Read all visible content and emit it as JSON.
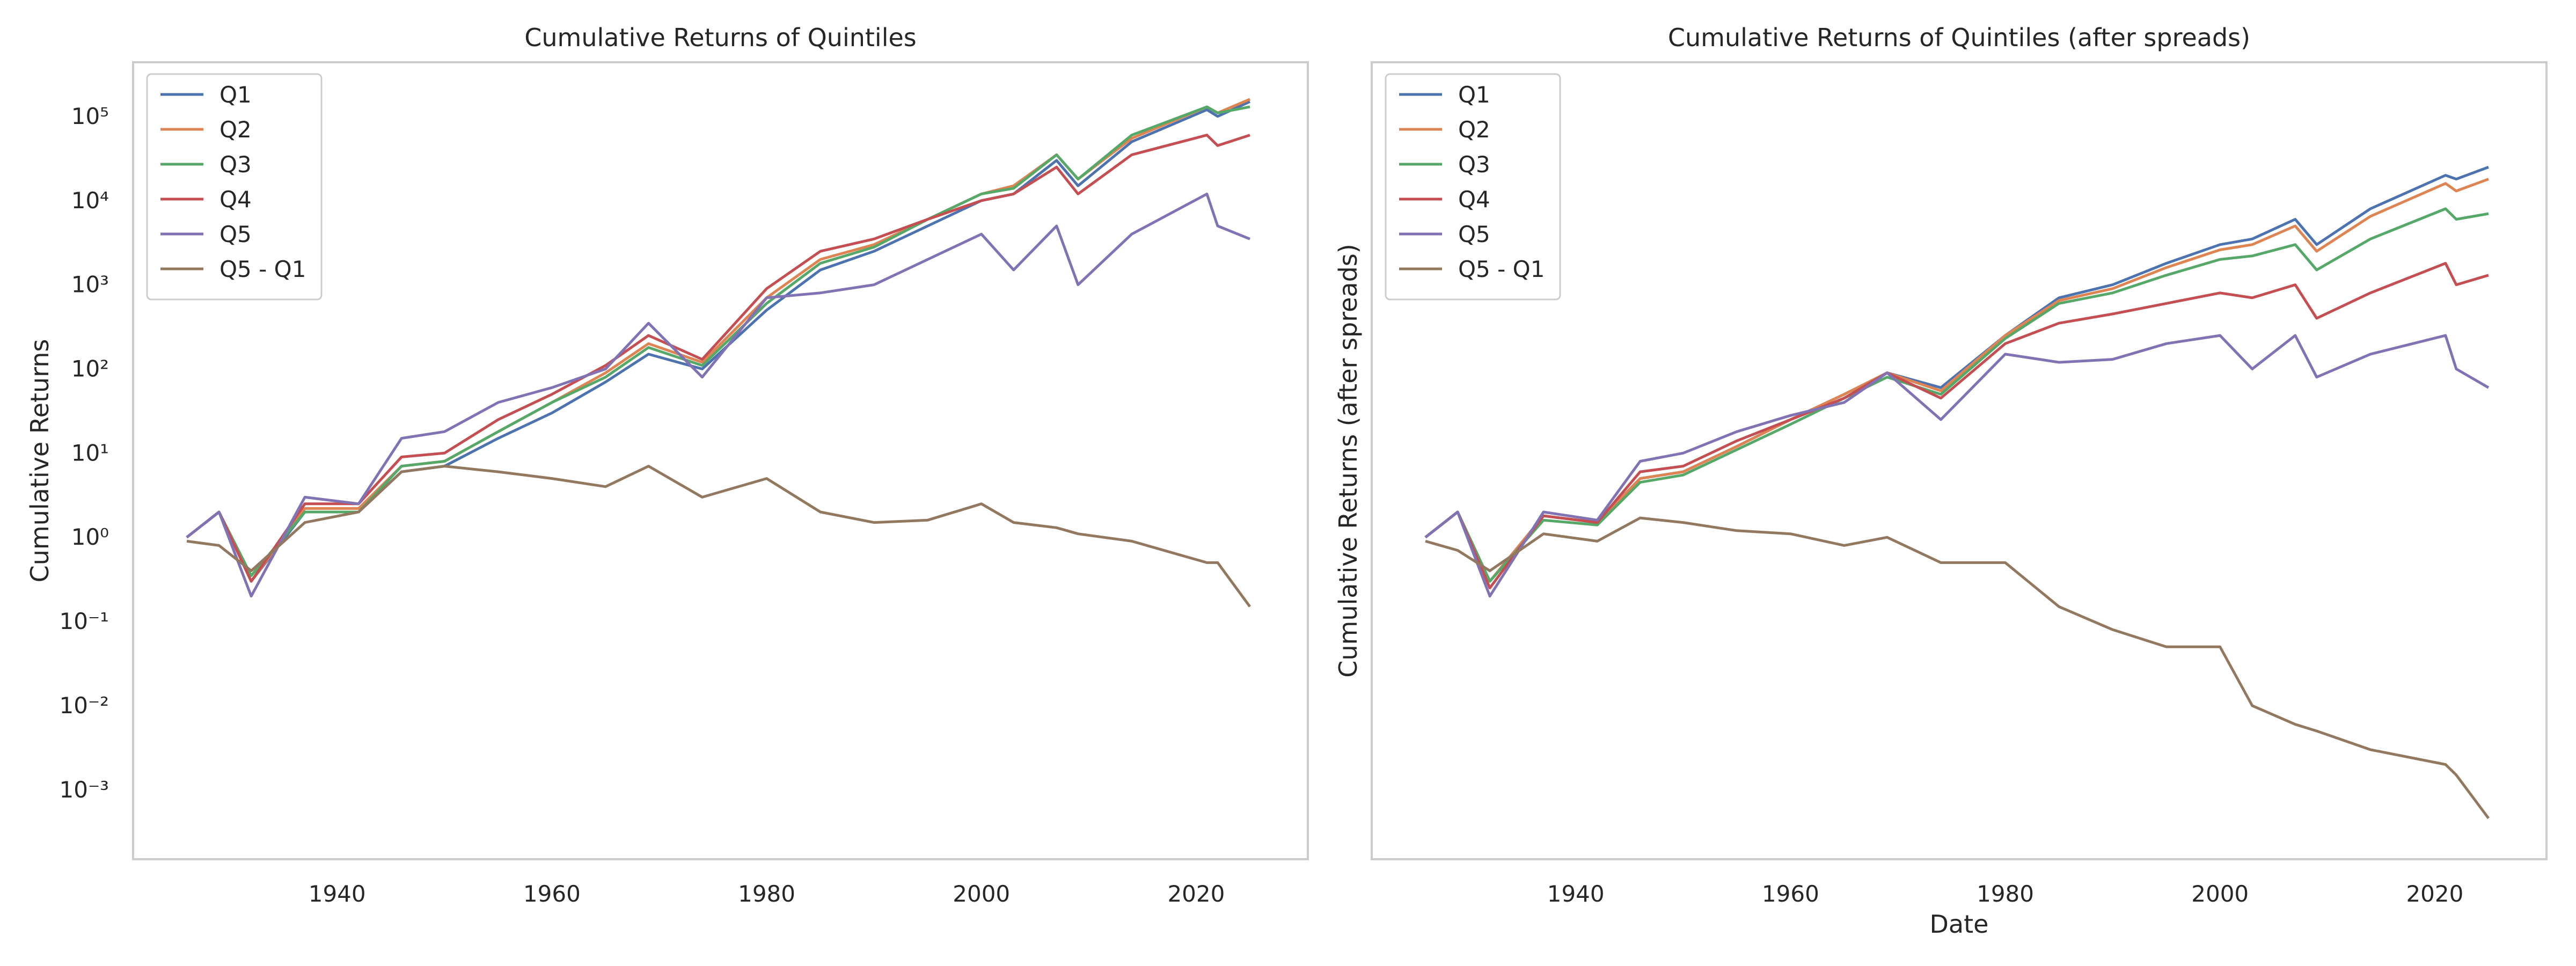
{
  "chart_data": [
    {
      "type": "line",
      "title": "Cumulative Returns of Quintiles",
      "ylabel": "Cumulative Returns",
      "x": [
        1926,
        1929,
        1932,
        1937,
        1942,
        1946,
        1950,
        1955,
        1960,
        1965,
        1969,
        1974,
        1980,
        1985,
        1990,
        1995,
        2000,
        2003,
        2007,
        2009,
        2014,
        2021,
        2022,
        2025
      ],
      "series": [
        {
          "name": "Q1",
          "color": "#4c72b0",
          "values": [
            1,
            2,
            0.3,
            2,
            2,
            6,
            7,
            15,
            30,
            70,
            150,
            100,
            500,
            1500,
            2500,
            5000,
            10000,
            12000,
            30000,
            15000,
            50000,
            120000,
            100000,
            150000
          ]
        },
        {
          "name": "Q2",
          "color": "#dd8452",
          "values": [
            1,
            2,
            0.3,
            2.2,
            2.2,
            7,
            8,
            18,
            40,
            90,
            200,
            120,
            700,
            2000,
            3000,
            6000,
            12000,
            15000,
            35000,
            18000,
            55000,
            130000,
            110000,
            160000
          ]
        },
        {
          "name": "Q3",
          "color": "#55a868",
          "values": [
            1,
            2,
            0.35,
            2,
            2,
            7,
            8,
            18,
            40,
            80,
            180,
            110,
            600,
            1800,
            2800,
            6000,
            12000,
            14000,
            35000,
            18000,
            60000,
            130000,
            110000,
            130000
          ]
        },
        {
          "name": "Q4",
          "color": "#c44e52",
          "values": [
            1,
            2,
            0.3,
            2.5,
            2.5,
            9,
            10,
            25,
            50,
            110,
            250,
            130,
            900,
            2500,
            3500,
            6000,
            10000,
            12000,
            25000,
            12000,
            35000,
            60000,
            45000,
            60000
          ]
        },
        {
          "name": "Q5",
          "color": "#8172b3",
          "values": [
            1,
            2,
            0.2,
            3,
            2.5,
            15,
            18,
            40,
            60,
            100,
            350,
            80,
            700,
            800,
            1000,
            2000,
            4000,
            1500,
            5000,
            1000,
            4000,
            12000,
            5000,
            3500
          ]
        },
        {
          "name": "Q5 - Q1",
          "color": "#937860",
          "values": [
            0.9,
            0.8,
            0.4,
            1.5,
            2,
            6,
            7,
            6,
            5,
            4,
            7,
            3,
            5,
            2,
            1.5,
            1.6,
            2.5,
            1.5,
            1.3,
            1.1,
            0.9,
            0.5,
            0.5,
            0.15
          ]
        }
      ],
      "xlim": [
        1921,
        2030.4
      ],
      "xticks": [
        1940,
        1960,
        1980,
        2000,
        2020
      ],
      "ylim": [
        0.00015,
        440000
      ],
      "log_scale": "y",
      "grid": false,
      "legend": "upper left",
      "yticks": [
        {
          "value": 0.001,
          "label": "10⁻³"
        },
        {
          "value": 0.01,
          "label": "10⁻²"
        },
        {
          "value": 0.1,
          "label": "10⁻¹"
        },
        {
          "value": 1,
          "label": "10⁰"
        },
        {
          "value": 10,
          "label": "10¹"
        },
        {
          "value": 100,
          "label": "10²"
        },
        {
          "value": 1000,
          "label": "10³"
        },
        {
          "value": 10000,
          "label": "10⁴"
        },
        {
          "value": 100000,
          "label": "10⁵"
        }
      ]
    },
    {
      "type": "line",
      "title": "Cumulative Returns of Quintiles (after spreads)",
      "ylabel": "Cumulative Returns (after spreads)",
      "xlabel": "Date",
      "x": [
        1926,
        1929,
        1932,
        1937,
        1942,
        1946,
        1950,
        1955,
        1960,
        1965,
        1969,
        1974,
        1980,
        1985,
        1990,
        1995,
        2000,
        2003,
        2007,
        2009,
        2014,
        2021,
        2022,
        2025
      ],
      "series": [
        {
          "name": "Q1",
          "color": "#4c72b0",
          "values": [
            1,
            2,
            0.3,
            1.8,
            1.5,
            5,
            6,
            12,
            25,
            50,
            90,
            60,
            250,
            700,
            1000,
            1800,
            3000,
            3500,
            6000,
            3000,
            8000,
            20000,
            18000,
            25000
          ]
        },
        {
          "name": "Q2",
          "color": "#dd8452",
          "values": [
            1,
            2,
            0.3,
            1.8,
            1.5,
            5,
            6,
            12,
            25,
            50,
            90,
            55,
            250,
            650,
            900,
            1600,
            2600,
            3000,
            5000,
            2500,
            6500,
            16000,
            13000,
            18000
          ]
        },
        {
          "name": "Q3",
          "color": "#55a868",
          "values": [
            1,
            2,
            0.3,
            1.6,
            1.4,
            4.5,
            5.5,
            11,
            22,
            45,
            80,
            50,
            230,
            600,
            800,
            1300,
            2000,
            2200,
            3000,
            1500,
            3500,
            8000,
            6000,
            7000
          ]
        },
        {
          "name": "Q4",
          "color": "#c44e52",
          "values": [
            1,
            2,
            0.25,
            1.8,
            1.5,
            6,
            7,
            14,
            25,
            45,
            90,
            45,
            200,
            350,
            450,
            600,
            800,
            700,
            1000,
            400,
            800,
            1800,
            1000,
            1300
          ]
        },
        {
          "name": "Q5",
          "color": "#8172b3",
          "values": [
            1,
            2,
            0.2,
            2,
            1.6,
            8,
            10,
            18,
            28,
            40,
            90,
            25,
            150,
            120,
            130,
            200,
            250,
            100,
            250,
            80,
            150,
            250,
            100,
            60
          ]
        },
        {
          "name": "Q5 - Q1",
          "color": "#937860",
          "values": [
            0.9,
            0.7,
            0.4,
            1.1,
            0.9,
            1.7,
            1.5,
            1.2,
            1.1,
            0.8,
            1.0,
            0.5,
            0.5,
            0.15,
            0.08,
            0.05,
            0.05,
            0.01,
            0.006,
            0.005,
            0.003,
            0.002,
            0.0015,
            0.00046
          ]
        }
      ],
      "xlim": [
        1921,
        2030.4
      ],
      "xticks": [
        1940,
        1960,
        1980,
        2000,
        2020
      ],
      "ylim": [
        0.00015,
        440000
      ],
      "log_scale": "y",
      "grid": false,
      "legend": "upper left"
    }
  ]
}
